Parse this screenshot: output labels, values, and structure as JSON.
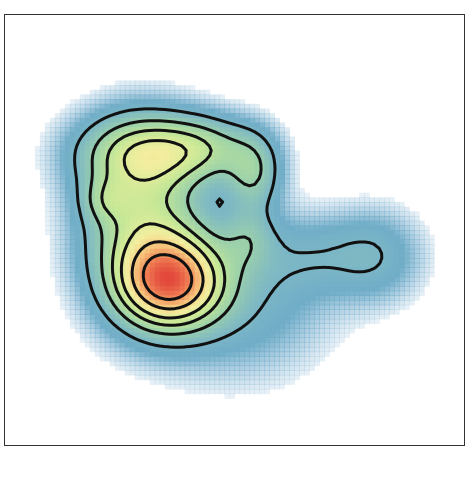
{
  "chart_data": {
    "type": "heatmap",
    "subtype": "2d-density-contour",
    "title": "",
    "xlabel": "",
    "ylabel": "",
    "x_range": [
      0,
      1
    ],
    "y_range": [
      0,
      1
    ],
    "grid": false,
    "legend": "none",
    "colormap": [
      "#5f9ec9",
      "#7bb6c6",
      "#9fd3a8",
      "#c8e896",
      "#f3ee9f",
      "#f6c27a",
      "#ef7f54",
      "#e2463a"
    ],
    "contour_color": "#111111",
    "contour_levels": [
      0.14,
      0.26,
      0.38,
      0.5,
      0.66,
      0.82
    ],
    "fill_min_level": 0.02,
    "components": [
      {
        "cx": 0.36,
        "cy": 0.38,
        "sx": 0.075,
        "sy": 0.07,
        "w": 1.0
      },
      {
        "cx": 0.3,
        "cy": 0.52,
        "sx": 0.085,
        "sy": 0.13,
        "w": 0.5
      },
      {
        "cx": 0.22,
        "cy": 0.57,
        "sx": 0.035,
        "sy": 0.035,
        "w": 0.18
      },
      {
        "cx": 0.29,
        "cy": 0.68,
        "sx": 0.09,
        "sy": 0.06,
        "w": 0.42
      },
      {
        "cx": 0.43,
        "cy": 0.69,
        "sx": 0.08,
        "sy": 0.05,
        "w": 0.36
      },
      {
        "cx": 0.54,
        "cy": 0.63,
        "sx": 0.04,
        "sy": 0.06,
        "w": 0.3
      },
      {
        "cx": 0.53,
        "cy": 0.48,
        "sx": 0.04,
        "sy": 0.05,
        "w": 0.18
      },
      {
        "cx": 0.5,
        "cy": 0.35,
        "sx": 0.13,
        "sy": 0.12,
        "w": 0.18
      },
      {
        "cx": 0.8,
        "cy": 0.44,
        "sx": 0.07,
        "sy": 0.07,
        "w": 0.18
      },
      {
        "cx": 0.66,
        "cy": 0.44,
        "sx": 0.07,
        "sy": 0.06,
        "w": 0.1
      }
    ]
  }
}
